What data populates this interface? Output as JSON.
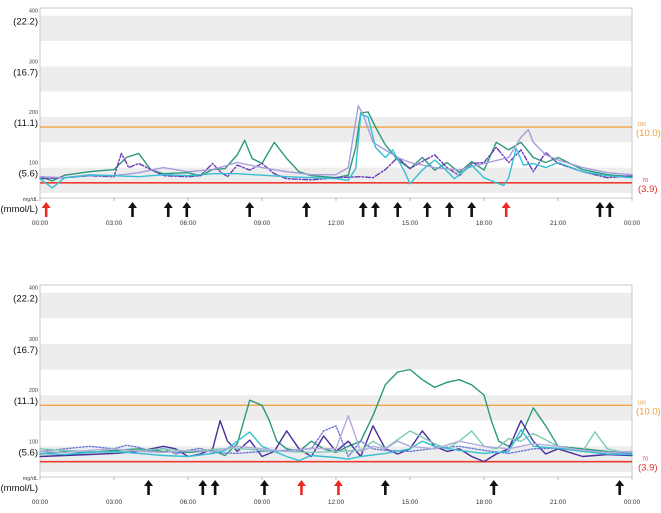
{
  "chart_data": [
    {
      "type": "line",
      "y_ticks_mgdl": [
        "400",
        "300",
        "200",
        "100"
      ],
      "y_ticks_mmol": [
        "(22.2)",
        "(16.7)",
        "(11.1)",
        "(5.6)"
      ],
      "y_unit_mgdl": "mg/dL",
      "y_unit_mmol": "(mmol/L)",
      "x_ticks": [
        "00:00",
        "03:00",
        "06:00",
        "09:00",
        "12:00",
        "15:00",
        "18:00",
        "21:00",
        "00:00"
      ],
      "xlim_hours": [
        0,
        24
      ],
      "ylim_mgdl": [
        40,
        415
      ],
      "thresholds": {
        "high": {
          "mgdl": "180",
          "mmol": "(10.0)",
          "value": 180,
          "color": "#f2a544"
        },
        "low": {
          "mgdl": "70",
          "mmol": "(3.9)",
          "value": 70,
          "color": "#ee3b2f"
        }
      },
      "background_bands": "alternating grey/white every 50 mg/dL",
      "arrows": [
        {
          "time_h": 0.25,
          "color": "red"
        },
        {
          "time_h": 3.75,
          "color": "black"
        },
        {
          "time_h": 5.2,
          "color": "black"
        },
        {
          "time_h": 5.95,
          "color": "black"
        },
        {
          "time_h": 8.5,
          "color": "black"
        },
        {
          "time_h": 10.8,
          "color": "black"
        },
        {
          "time_h": 13.1,
          "color": "black"
        },
        {
          "time_h": 13.6,
          "color": "black"
        },
        {
          "time_h": 14.5,
          "color": "black"
        },
        {
          "time_h": 15.7,
          "color": "black"
        },
        {
          "time_h": 16.6,
          "color": "black"
        },
        {
          "time_h": 17.5,
          "color": "black"
        },
        {
          "time_h": 18.9,
          "color": "red"
        },
        {
          "time_h": 22.7,
          "color": "black"
        },
        {
          "time_h": 23.1,
          "color": "black"
        }
      ],
      "series": [
        {
          "color": "#2a9a78",
          "dash": "solid",
          "x": [
            0,
            0.5,
            1,
            2,
            3,
            3.5,
            4,
            4.5,
            5,
            6,
            6.5,
            7,
            7.5,
            8,
            8.3,
            8.6,
            9,
            9.5,
            10,
            10.5,
            11,
            12,
            12.5,
            12.8,
            13,
            13.3,
            13.6,
            14,
            14.5,
            15,
            15.5,
            16,
            16.5,
            17,
            17.5,
            18,
            18.5,
            19,
            19.5,
            20,
            20.5,
            21,
            22,
            23,
            24
          ],
          "y": [
            82,
            74,
            85,
            92,
            96,
            120,
            128,
            95,
            88,
            90,
            84,
            96,
            98,
            125,
            154,
            118,
            108,
            150,
            118,
            92,
            84,
            80,
            85,
            140,
            208,
            210,
            180,
            145,
            115,
            98,
            120,
            95,
            110,
            90,
            112,
            95,
            150,
            135,
            150,
            120,
            110,
            120,
            96,
            86,
            82
          ]
        },
        {
          "color": "#6a3ab8",
          "dash": "dash-dot",
          "x": [
            0,
            1,
            2,
            3,
            3.3,
            3.6,
            4,
            4.5,
            5,
            6,
            6.5,
            7,
            7.3,
            7.6,
            8,
            8.5,
            9,
            9.5,
            10,
            11,
            12,
            13,
            13.5,
            14,
            14.5,
            15,
            15.5,
            16,
            16.5,
            17,
            17.5,
            18,
            18.5,
            19,
            19.5,
            20,
            20.5,
            21,
            22,
            23,
            24
          ],
          "y": [
            78,
            80,
            84,
            82,
            128,
            100,
            108,
            96,
            84,
            82,
            84,
            108,
            92,
            82,
            105,
            95,
            108,
            88,
            78,
            76,
            80,
            82,
            80,
            96,
            120,
            98,
            112,
            125,
            100,
            84,
            108,
            110,
            140,
            110,
            135,
            92,
            130,
            108,
            92,
            80,
            84
          ]
        },
        {
          "color": "#a89cdc",
          "dash": "solid",
          "x": [
            0,
            1,
            2,
            3,
            4,
            5,
            6,
            7,
            8,
            9,
            10,
            11,
            12,
            12.5,
            12.9,
            13.1,
            13.5,
            14,
            14.5,
            15,
            16,
            17,
            18,
            19,
            19.5,
            19.8,
            20,
            20.5,
            21,
            22,
            23,
            24
          ],
          "y": [
            82,
            80,
            86,
            84,
            90,
            100,
            92,
            96,
            110,
            100,
            92,
            86,
            86,
            100,
            222,
            205,
            150,
            135,
            120,
            110,
            100,
            95,
            108,
            120,
            160,
            175,
            150,
            125,
            115,
            100,
            90,
            86
          ]
        },
        {
          "color": "#34c0d2",
          "dash": "solid",
          "x": [
            0,
            0.5,
            1,
            2,
            3,
            4,
            5,
            6,
            7,
            8,
            9,
            10,
            11,
            12,
            12.5,
            12.8,
            13,
            13.3,
            13.6,
            14,
            14.3,
            14.8,
            15,
            15.5,
            16,
            16.4,
            16.8,
            17,
            17.5,
            18,
            18.5,
            18.8,
            19,
            19.3,
            19.6,
            20,
            20.5,
            21,
            22,
            23,
            24
          ],
          "y": [
            78,
            60,
            80,
            85,
            84,
            82,
            86,
            84,
            88,
            88,
            85,
            82,
            80,
            78,
            75,
            98,
            205,
            200,
            140,
            120,
            135,
            90,
            68,
            95,
            115,
            98,
            78,
            86,
            105,
            80,
            70,
            65,
            80,
            138,
            105,
            108,
            100,
            110,
            92,
            84,
            80
          ]
        }
      ]
    },
    {
      "type": "line",
      "y_ticks_mgdl": [
        "400",
        "300",
        "200",
        "100"
      ],
      "y_ticks_mmol": [
        "(22.2)",
        "(16.7)",
        "(11.1)",
        "(5.6)"
      ],
      "y_unit_mgdl": "mg/dL",
      "y_unit_mmol": "(mmol/L)",
      "x_ticks": [
        "00:00",
        "03:00",
        "06:00",
        "09:00",
        "12:00",
        "15:00",
        "18:00",
        "21:00",
        "00:00"
      ],
      "xlim_hours": [
        0,
        24
      ],
      "ylim_mgdl": [
        40,
        415
      ],
      "thresholds": {
        "high": {
          "mgdl": "180",
          "mmol": "(10.0)",
          "value": 180,
          "color": "#f2a544"
        },
        "low": {
          "mgdl": "70",
          "mmol": "(3.9)",
          "value": 70,
          "color": "#ee3b2f"
        }
      },
      "background_bands": "alternating grey/white every 50 mg/dL",
      "arrows": [
        {
          "time_h": 4.4,
          "color": "black"
        },
        {
          "time_h": 6.6,
          "color": "black"
        },
        {
          "time_h": 7.1,
          "color": "black"
        },
        {
          "time_h": 9.1,
          "color": "black"
        },
        {
          "time_h": 10.6,
          "color": "red"
        },
        {
          "time_h": 12.1,
          "color": "red"
        },
        {
          "time_h": 14.0,
          "color": "black"
        },
        {
          "time_h": 18.4,
          "color": "black"
        },
        {
          "time_h": 23.5,
          "color": "black"
        }
      ],
      "series": [
        {
          "color": "#2a9a78",
          "dash": "solid",
          "x": [
            0,
            1,
            2,
            3,
            4,
            5,
            6,
            7,
            7.5,
            8,
            8.5,
            9,
            9.3,
            9.6,
            10,
            10.5,
            11,
            11.5,
            12,
            12.5,
            13,
            13.5,
            14,
            14.5,
            15,
            15.5,
            16,
            16.5,
            17,
            17.5,
            18,
            18.3,
            18.6,
            19,
            19.5,
            20,
            20.5,
            21,
            22,
            23,
            24
          ],
          "y": [
            85,
            90,
            88,
            92,
            95,
            90,
            88,
            92,
            82,
            105,
            190,
            180,
            150,
            110,
            95,
            90,
            110,
            95,
            88,
            100,
            110,
            160,
            220,
            245,
            250,
            230,
            215,
            225,
            230,
            220,
            200,
            150,
            110,
            100,
            120,
            175,
            140,
            100,
            95,
            90,
            88
          ]
        },
        {
          "color": "#4a2c9c",
          "dash": "solid",
          "x": [
            0,
            1,
            2,
            3,
            4,
            5,
            5.5,
            6,
            6.5,
            7,
            7.3,
            7.6,
            8,
            8.5,
            9,
            9.5,
            10,
            10.5,
            11,
            11.5,
            12,
            12.5,
            13,
            13.5,
            14,
            14.5,
            15,
            15.5,
            16,
            16.5,
            17,
            17.5,
            18,
            18.5,
            19,
            19.5,
            20,
            20.5,
            21,
            22,
            23,
            24
          ],
          "y": [
            80,
            82,
            84,
            86,
            90,
            100,
            95,
            80,
            85,
            95,
            150,
            110,
            90,
            112,
            80,
            90,
            130,
            95,
            80,
            120,
            90,
            110,
            80,
            140,
            95,
            85,
            95,
            130,
            100,
            90,
            95,
            80,
            70,
            85,
            95,
            150,
            110,
            85,
            95,
            80,
            84,
            82
          ]
        },
        {
          "color": "#6a7ad8",
          "dash": "dotted",
          "x": [
            0,
            1,
            2,
            3,
            3.5,
            4,
            4.5,
            5,
            5.5,
            6,
            6.5,
            7,
            8,
            9,
            10,
            11,
            11.5,
            12,
            12.5,
            13,
            13.5,
            14,
            15,
            16,
            17,
            18,
            19,
            20,
            21,
            22,
            23,
            24
          ],
          "y": [
            90,
            95,
            100,
            95,
            102,
            98,
            90,
            96,
            85,
            92,
            96,
            88,
            86,
            90,
            92,
            95,
            130,
            140,
            80,
            110,
            95,
            92,
            90,
            96,
            100,
            92,
            86,
            95,
            96,
            92,
            88,
            86
          ]
        },
        {
          "color": "#7dcbb4",
          "dash": "solid",
          "x": [
            0,
            1,
            2,
            3,
            4,
            5,
            6,
            7,
            8,
            9,
            10,
            11,
            12,
            13,
            13.5,
            14,
            15,
            16,
            16.5,
            17,
            17.5,
            18,
            18.5,
            19,
            19.5,
            20,
            21,
            22,
            22.5,
            23,
            23.5,
            24
          ],
          "y": [
            95,
            92,
            90,
            88,
            92,
            95,
            90,
            94,
            96,
            92,
            90,
            88,
            90,
            92,
            110,
            96,
            130,
            105,
            95,
            110,
            130,
            100,
            95,
            115,
            110,
            125,
            100,
            90,
            128,
            95,
            90,
            88
          ]
        },
        {
          "color": "#34c0d2",
          "dash": "solid",
          "x": [
            0,
            1,
            2,
            3,
            4,
            5,
            6,
            7,
            7.5,
            8,
            8.5,
            9,
            10,
            10.5,
            11,
            12,
            12.5,
            13,
            14,
            15,
            15.5,
            16,
            17,
            18,
            19,
            19.5,
            20,
            21,
            22,
            23,
            24
          ],
          "y": [
            86,
            84,
            88,
            90,
            86,
            82,
            80,
            86,
            92,
            110,
            128,
            100,
            80,
            72,
            82,
            78,
            75,
            80,
            86,
            95,
            110,
            100,
            92,
            86,
            90,
            132,
            100,
            96,
            90,
            85,
            84
          ]
        },
        {
          "color": "#b4acdc",
          "dash": "solid",
          "x": [
            0,
            1,
            2,
            3,
            4,
            5,
            6,
            7,
            8,
            9,
            10,
            11,
            12,
            12.5,
            13,
            13.5,
            14,
            14.5,
            15,
            16,
            17,
            18,
            19,
            20,
            21,
            22,
            23,
            24
          ],
          "y": [
            90,
            88,
            92,
            95,
            90,
            88,
            92,
            90,
            100,
            95,
            90,
            96,
            95,
            160,
            90,
            100,
            95,
            110,
            100,
            95,
            110,
            100,
            95,
            105,
            100,
            92,
            88,
            90
          ]
        }
      ]
    }
  ]
}
